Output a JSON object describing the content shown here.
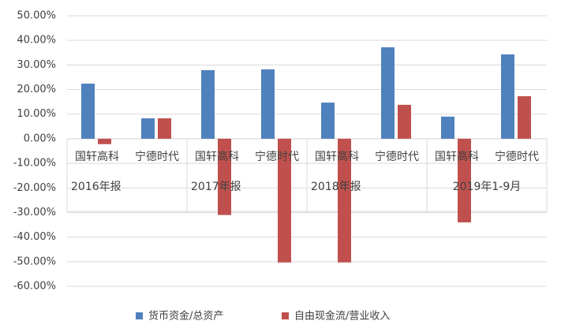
{
  "chart_data": {
    "type": "bar",
    "categories": [
      "国轩高科",
      "宁德时代",
      "国轩高科",
      "宁德时代",
      "国轩高科",
      "宁德时代",
      "国轩高科",
      "宁德时代"
    ],
    "groups": [
      "2016年报",
      "2017年报",
      "2018年报",
      "2019年1-9月"
    ],
    "series": [
      {
        "name": "货币资金/总资产",
        "color": "#4f81bd",
        "values": [
          22.4,
          8.3,
          27.9,
          28.2,
          14.7,
          37.2,
          9.0,
          34.3
        ]
      },
      {
        "name": "自由现金流/营业收入",
        "color": "#c0504d",
        "values": [
          -2.2,
          8.3,
          -31.0,
          -50.3,
          -50.3,
          13.8,
          -34.0,
          17.3
        ]
      }
    ],
    "ylim": [
      -60,
      50
    ],
    "yticks": [
      {
        "value": -60,
        "label": "-60.00%"
      },
      {
        "value": -50,
        "label": "-50.00%"
      },
      {
        "value": -40,
        "label": "-40.00%"
      },
      {
        "value": -30,
        "label": "-30.00%"
      },
      {
        "value": -20,
        "label": "-20.00%"
      },
      {
        "value": -10,
        "label": "-10.00%"
      },
      {
        "value": 0,
        "label": "0.00%"
      },
      {
        "value": 10,
        "label": "10.00%"
      },
      {
        "value": 20,
        "label": "20.00%"
      },
      {
        "value": 30,
        "label": "30.00%"
      },
      {
        "value": 40,
        "label": "40.00%"
      },
      {
        "value": 50,
        "label": "50.00%"
      }
    ],
    "grid": true,
    "legend": "bottom"
  }
}
